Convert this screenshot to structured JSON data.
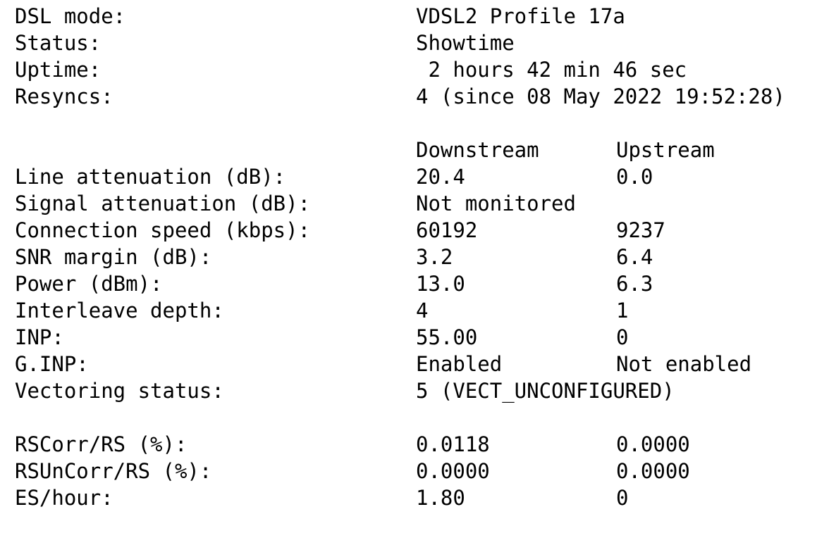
{
  "rows": [
    {
      "label": "DSL mode:",
      "down": "VDSL2 Profile 17a",
      "up": ""
    },
    {
      "label": "Status:",
      "down": "Showtime",
      "up": ""
    },
    {
      "label": "Uptime:",
      "down": " 2 hours 42 min 46 sec",
      "up": ""
    },
    {
      "label": "Resyncs:",
      "down": "4 (since 08 May 2022 19:52:28)",
      "up": ""
    },
    {
      "label": "",
      "down": "",
      "up": ""
    },
    {
      "label": "",
      "down": "Downstream",
      "up": "Upstream"
    },
    {
      "label": "Line attenuation (dB):",
      "down": "20.4",
      "up": "0.0"
    },
    {
      "label": "Signal attenuation (dB):",
      "down": "Not monitored",
      "up": ""
    },
    {
      "label": "Connection speed (kbps):",
      "down": "60192",
      "up": "9237"
    },
    {
      "label": "SNR margin (dB):",
      "down": "3.2",
      "up": "6.4"
    },
    {
      "label": "Power (dBm):",
      "down": "13.0",
      "up": "6.3"
    },
    {
      "label": "Interleave depth:",
      "down": "4",
      "up": "1"
    },
    {
      "label": "INP:",
      "down": "55.00",
      "up": "0"
    },
    {
      "label": "G.INP:",
      "down": "Enabled",
      "up": "Not enabled"
    },
    {
      "label": "Vectoring status:",
      "down": "5 (VECT_UNCONFIGURED)",
      "up": ""
    },
    {
      "label": "",
      "down": "",
      "up": ""
    },
    {
      "label": "RSCorr/RS (%):",
      "down": "0.0118",
      "up": "0.0000"
    },
    {
      "label": "RSUnCorr/RS (%):",
      "down": "0.0000",
      "up": "0.0000"
    },
    {
      "label": "ES/hour:",
      "down": "1.80",
      "up": "0"
    }
  ]
}
